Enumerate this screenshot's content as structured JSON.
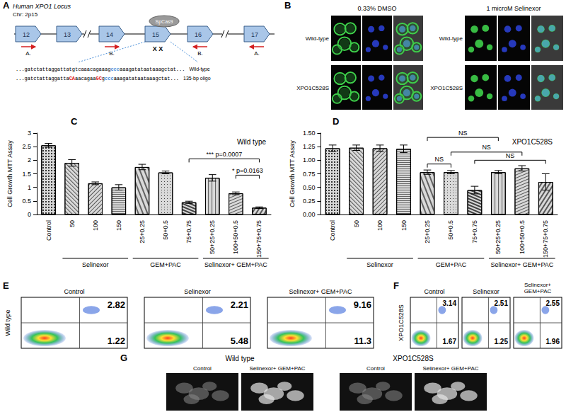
{
  "panel_letters": [
    "A",
    "B",
    "C",
    "D",
    "E",
    "F",
    "G"
  ],
  "locus": {
    "title": "Human XPO1 Locus",
    "chromosome": "Chr: 2p15",
    "exons": [
      "12",
      "13",
      "14",
      "15",
      "16",
      "17"
    ],
    "nuclease": "SpCas9",
    "cut_marks": "X X",
    "primers": [
      {
        "label": "A.",
        "exon": "12"
      },
      {
        "label": "B.",
        "exon": "14"
      },
      {
        "label": "B.",
        "exon": "16"
      },
      {
        "label": "A.",
        "exon": "17"
      }
    ],
    "sequences": [
      {
        "label": "Wild-type",
        "segments": [
          {
            "text": "...gatctattaggattatgtcaaacagaaag"
          },
          {
            "text": "ccc",
            "color": "#4a8fd9"
          },
          {
            "text": "aaagatataataaagctat..."
          }
        ]
      },
      {
        "label": "135-bp oligo",
        "segments": [
          {
            "text": "...gatctattaggatta"
          },
          {
            "text": "CA",
            "color": "#e02020"
          },
          {
            "text": "aacagaa"
          },
          {
            "text": "GC",
            "color": "#e02020"
          },
          {
            "text": "g"
          },
          {
            "text": "ccc",
            "color": "#4a8fd9"
          },
          {
            "text": "aaagatataataaagctat..."
          }
        ]
      }
    ]
  },
  "microscopy": {
    "columns": [
      "0.33% DMSO",
      "1 microM Selinexor"
    ],
    "rows": [
      "Wild-type",
      "XPO1C528S"
    ]
  },
  "chart_data": [
    {
      "type": "bar",
      "title": "Wild type",
      "y_label": "Cell Growth MTT Assay",
      "categories": [
        "Control",
        "50",
        "100",
        "150",
        "25+0.25",
        "50+0.5",
        "75+0.75",
        "50+25+0.25",
        "100+50+0.5",
        "150+75+0.75"
      ],
      "values": [
        2.55,
        1.9,
        1.15,
        1.0,
        1.75,
        1.55,
        0.45,
        1.35,
        0.78,
        0.25
      ],
      "errors": [
        0.07,
        0.12,
        0.05,
        0.1,
        0.1,
        0.05,
        0.04,
        0.12,
        0.05,
        0.03
      ],
      "color": "#d9d9d9",
      "groups": [
        {
          "label": "Selinexor",
          "from": "50",
          "to": "150"
        },
        {
          "label": "GEM+PAC",
          "from": "25+0.25",
          "to": "75+0.75"
        },
        {
          "label": "Selinexor+ GEM+PAC",
          "from": "50+25+0.25",
          "to": "150+75+0.75"
        }
      ],
      "annotations": [
        {
          "text": "*** p=0.0007",
          "from": "75+0.75",
          "to": "150+75+0.75",
          "y": 2.05
        },
        {
          "text": "* p=0.0163",
          "from": "100+50+0.5",
          "to": "150+75+0.75",
          "y": 1.45
        }
      ],
      "ylim": [
        0,
        3
      ],
      "yticks": [
        0,
        0.5,
        1,
        1.5,
        2,
        2.5,
        3
      ],
      "grid": false
    },
    {
      "type": "bar",
      "title": "XPO1C528S",
      "y_label": "Cell Growth MTT Assay",
      "categories": [
        "Control",
        "50",
        "100",
        "150",
        "25+0.25",
        "50+0.5",
        "75+0.75",
        "50+25+0.25",
        "100+50+0.5",
        "150+75+0.75"
      ],
      "values": [
        1.22,
        1.23,
        1.22,
        1.21,
        0.78,
        0.78,
        0.45,
        0.78,
        0.85,
        0.6
      ],
      "errors": [
        0.06,
        0.05,
        0.06,
        0.07,
        0.04,
        0.03,
        0.07,
        0.03,
        0.05,
        0.15
      ],
      "color": "#d9d9d9",
      "groups": [
        {
          "label": "Selinexor",
          "from": "50",
          "to": "150"
        },
        {
          "label": "GEM+PAC",
          "from": "25+0.25",
          "to": "75+0.75"
        },
        {
          "label": "Selinexor+ GEM+PAC",
          "from": "50+25+0.25",
          "to": "150+75+0.75"
        }
      ],
      "annotations": [
        {
          "text": "NS",
          "from": "25+0.25",
          "to": "50+25+0.25",
          "y": 1.42
        },
        {
          "text": "NS",
          "from": "50+0.5",
          "to": "100+50+0.5",
          "y": 1.15
        },
        {
          "text": "NS",
          "from": "25+0.25",
          "to": "50+0.5",
          "y": 0.93
        },
        {
          "text": "NS",
          "from": "75+0.75",
          "to": "150+75+0.75",
          "y": 1.0
        }
      ],
      "ylim": [
        0,
        1.5
      ],
      "yticks": [
        {
          "value": 0,
          "label": "0.00"
        },
        {
          "value": 0.25,
          "label": "0.25"
        },
        {
          "value": 0.5,
          "label": "0.50"
        },
        {
          "value": 0.75,
          "label": "0.75"
        },
        {
          "value": 1,
          "label": "1.00"
        },
        {
          "value": 1.25,
          "label": "1.25"
        },
        {
          "value": 1.5,
          "label": "1.50"
        }
      ],
      "grid": false
    }
  ],
  "flow": [
    {
      "row_label": "Wild type",
      "plots": [
        {
          "title": "Control",
          "upper_right": 2.82,
          "lower_right": 1.22
        },
        {
          "title": "Selinexor",
          "upper_right": 2.21,
          "lower_right": 5.48
        },
        {
          "title": "Selinexor+ GEM+PAC",
          "upper_right": 9.16,
          "lower_right": 11.3
        }
      ]
    },
    {
      "row_label": "XPO1C528S",
      "plots": [
        {
          "title": "Control",
          "upper_right": 3.14,
          "lower_right": 1.67
        },
        {
          "title": "Selinexor",
          "upper_right": 2.51,
          "lower_right": 1.25
        },
        {
          "title": "Selinexor+ GEM+PAC",
          "upper_right": 2.55,
          "lower_right": 1.96
        }
      ]
    }
  ],
  "images_G": {
    "groups": [
      {
        "label": "Wild type",
        "columns": [
          "Control",
          "Selinexor+ GEM+PAC"
        ]
      },
      {
        "label": "XPO1C528S",
        "columns": [
          "Control",
          "Selinexor+ GEM+PAC"
        ]
      }
    ]
  }
}
